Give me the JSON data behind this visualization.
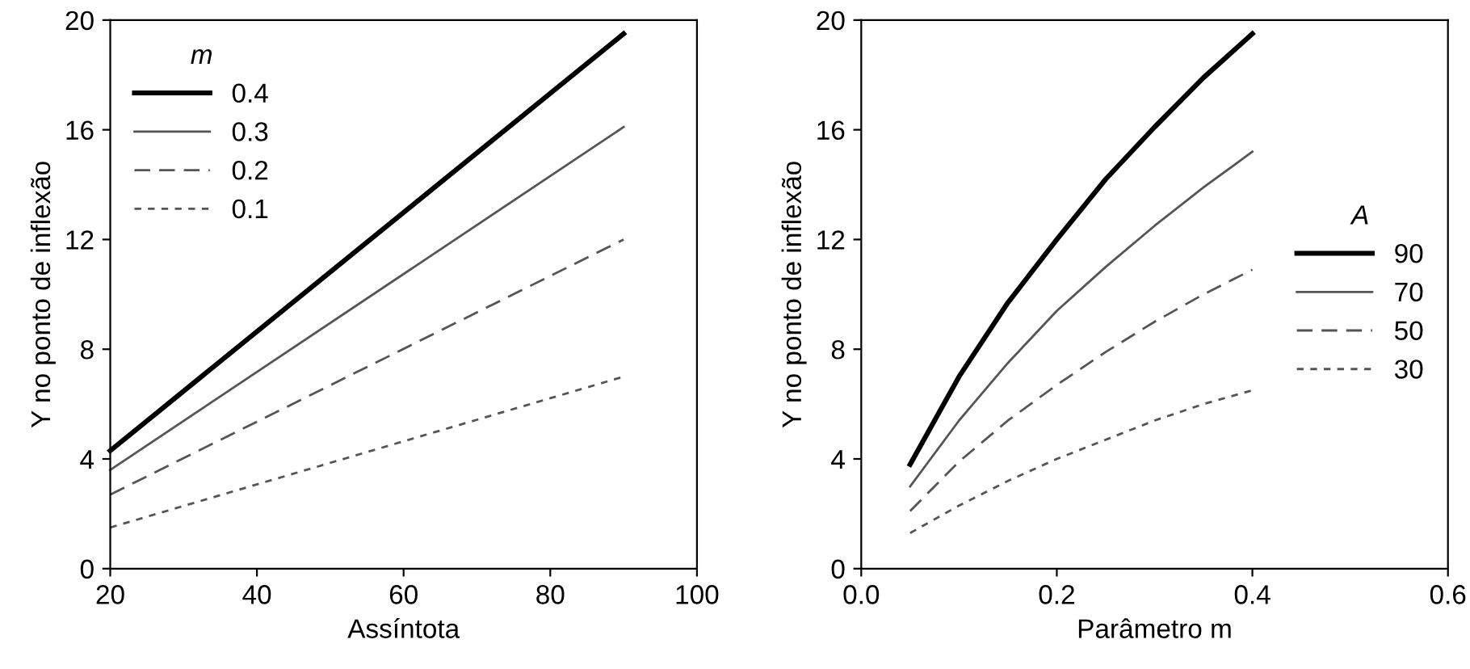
{
  "chart_data": [
    {
      "type": "line",
      "xlabel": "Assíntota",
      "ylabel": "Y no ponto de inflexão",
      "legend_title": "m",
      "legend": "top left",
      "grid": false,
      "marker": "none",
      "xlim": [
        20,
        100
      ],
      "xticks": [
        20,
        40,
        60,
        80,
        100
      ],
      "ylim": [
        0,
        20
      ],
      "yticks": [
        0,
        4,
        8,
        12,
        16,
        20
      ],
      "x": [
        20,
        90
      ],
      "series": [
        {
          "name": "0.4",
          "color": "#000000",
          "line_style": "solid",
          "values": [
            4.3,
            19.5
          ]
        },
        {
          "name": "0.3",
          "color": "#555555",
          "line_style": "solid",
          "values": [
            3.6,
            16.1
          ]
        },
        {
          "name": "0.2",
          "color": "#555555",
          "line_style": "dashed",
          "values": [
            2.7,
            12.0
          ]
        },
        {
          "name": "0.1",
          "color": "#555555",
          "line_style": "dotted",
          "values": [
            1.5,
            7.0
          ]
        }
      ]
    },
    {
      "type": "line",
      "xlabel": "Parâmetro m",
      "ylabel": "Y no ponto de inflexão",
      "legend_title": "A",
      "legend": "right",
      "grid": false,
      "marker": "none",
      "xlim": [
        0,
        0.6
      ],
      "xticks": [
        {
          "value": 0,
          "label": "0.0"
        },
        {
          "value": 0.2,
          "label": "0.2"
        },
        {
          "value": 0.4,
          "label": "0.4"
        },
        {
          "value": 0.6,
          "label": "0.6"
        }
      ],
      "ylim": [
        0,
        20
      ],
      "yticks": [
        0,
        4,
        8,
        12,
        16,
        20
      ],
      "x": [
        0.05,
        0.1,
        0.15,
        0.2,
        0.25,
        0.3,
        0.35,
        0.4
      ],
      "series": [
        {
          "name": "90",
          "color": "#000000",
          "line_style": "solid",
          "values": [
            3.8,
            7.0,
            9.7,
            12.0,
            14.2,
            16.1,
            17.9,
            19.5
          ]
        },
        {
          "name": "70",
          "color": "#555555",
          "line_style": "solid",
          "values": [
            3.0,
            5.4,
            7.5,
            9.4,
            11.0,
            12.5,
            13.9,
            15.2
          ]
        },
        {
          "name": "50",
          "color": "#555555",
          "line_style": "dashed",
          "values": [
            2.1,
            3.9,
            5.4,
            6.7,
            7.9,
            9.0,
            10.0,
            10.9
          ]
        },
        {
          "name": "30",
          "color": "#555555",
          "line_style": "dotted",
          "values": [
            1.3,
            2.3,
            3.2,
            4.0,
            4.7,
            5.4,
            6.0,
            6.5
          ]
        }
      ]
    }
  ]
}
